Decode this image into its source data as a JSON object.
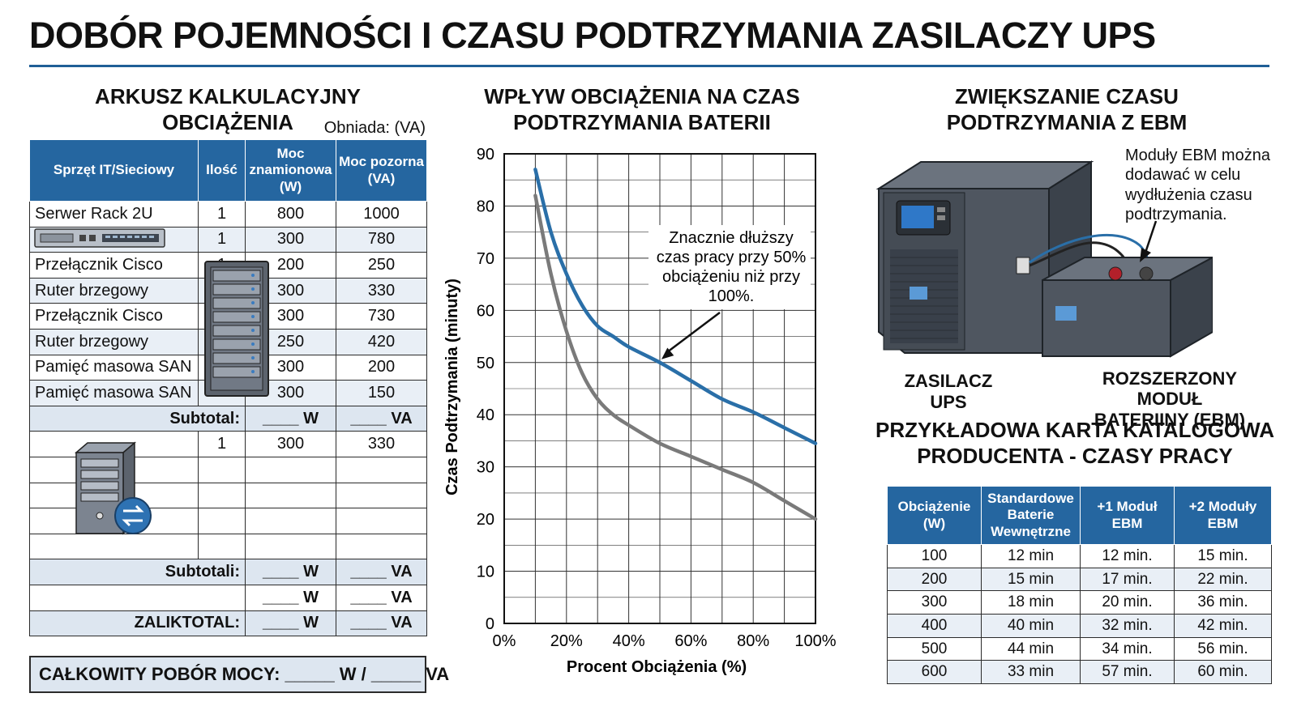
{
  "main_title": "DOBÓR POJEMNOŚCI I CZASU PODTRZYMANIA ZASILACZY UPS",
  "load_sheet": {
    "title": "ARKUSZ KALKULACYJNY OBCIĄŻENIA",
    "unit_note": "Obniada: (VA)",
    "headers": [
      "Sprzęt IT/Sieciowy",
      "Ilość",
      "Moc znamionowa (W)",
      "Moc pozorna (VA)"
    ],
    "rows": [
      {
        "device": "Serwer Rack 2U",
        "qty": "1",
        "w": "800",
        "va": "1000"
      },
      {
        "device": "",
        "qty": "1",
        "w": "300",
        "va": "780"
      },
      {
        "device": "Przełącznik Cisco",
        "qty": "1",
        "w": "200",
        "va": "250"
      },
      {
        "device": "Ruter brzegowy",
        "qty": "",
        "w": "300",
        "va": "330"
      },
      {
        "device": "Przełącznik Cisco",
        "qty": "",
        "w": "300",
        "va": "730"
      },
      {
        "device": "Ruter brzegowy",
        "qty": "",
        "w": "250",
        "va": "420"
      },
      {
        "device": "Pamięć masowa SAN",
        "qty": "",
        "w": "300",
        "va": "200"
      },
      {
        "device": "Pamięć masowa SAN",
        "qty": "",
        "w": "300",
        "va": "150"
      }
    ],
    "subtotal1": {
      "label": "Subtotal:",
      "w": "____ W",
      "va": "____ VA"
    },
    "row2": {
      "qty": "1",
      "w": "300",
      "va": "330"
    },
    "subtotal2": {
      "label": "Subtotali:",
      "w": "____ W",
      "va": "____ VA"
    },
    "subtotal3": {
      "w": "____ W",
      "va": "____ VA"
    },
    "grand": {
      "label": "ZALIKTOTAL:",
      "w": "____ W",
      "va": "____ VA"
    },
    "total_line": "CAŁKOWITY POBÓR MOCY: _____ W / _____ VA"
  },
  "chart_section": {
    "title_line1": "WPŁYW OBCIĄŻENIA NA CZAS",
    "title_line2": "PODTRZYMANIA BATERII"
  },
  "chart_data": {
    "type": "line",
    "xlabel": "Procent Obciążenia (%)",
    "ylabel": "Czas Podtrzymania (minuty)",
    "xlim": [
      0,
      100
    ],
    "ylim": [
      0,
      90
    ],
    "x_ticks": [
      "0%",
      "20%",
      "40%",
      "60%",
      "80%",
      "100%"
    ],
    "y_ticks": [
      "0",
      "10",
      "20",
      "30",
      "40",
      "50",
      "60",
      "70",
      "80",
      "90"
    ],
    "grid": true,
    "series": [
      {
        "color": "#2a6fa8",
        "x": [
          10,
          15,
          20,
          25,
          30,
          35,
          40,
          50,
          60,
          70,
          80,
          90,
          100
        ],
        "y": [
          87,
          75,
          67,
          61,
          57,
          55,
          53,
          50,
          46.5,
          43,
          40.5,
          37.5,
          34.5
        ]
      },
      {
        "color": "#7a7a7a",
        "x": [
          10,
          15,
          20,
          25,
          30,
          35,
          40,
          50,
          60,
          70,
          80,
          90,
          100
        ],
        "y": [
          82,
          67,
          56,
          48,
          43,
          40,
          38,
          34.5,
          32,
          29.5,
          27,
          23.5,
          20
        ]
      }
    ],
    "annotation": {
      "lines": [
        "Znacznie dłuższy",
        "czas pracy przy 50%",
        "obciążeniu niż przy",
        "100%."
      ],
      "target_x": 50,
      "target_y": 50
    }
  },
  "ebm_section": {
    "title_line1": "ZWIĘKSZANIE CZASU",
    "title_line2": "PODTRZYMANIA Z EBM",
    "note": "Moduły EBM można dodawać w celu wydłużenia czasu podtrzymania.",
    "ups_label": "ZASILACZ UPS",
    "ebm_label_line1": "ROZSZERZONY MODUŁ",
    "ebm_label_line2": "BATERIINY (EBM)"
  },
  "catalog": {
    "title_line1": "PRZYKŁADOWA KARTA KATALOGOWA",
    "title_line2": "PRODUCENTA - CZASY PRACY",
    "headers": [
      "Obciążenie (W)",
      "Standardowe Baterie Wewnętrzne",
      "+1 Moduł EBM",
      "+2 Moduły EBM"
    ],
    "rows": [
      [
        "100",
        "12 min",
        "12 min.",
        "15 min."
      ],
      [
        "200",
        "15 min",
        "17 min.",
        "22 min."
      ],
      [
        "300",
        "18 min",
        "20 min.",
        "36 min."
      ],
      [
        "400",
        "40 min",
        "32 min.",
        "42 min."
      ],
      [
        "500",
        "44 min",
        "34 min.",
        "56 min."
      ],
      [
        "600",
        "33 min",
        "57 min.",
        "60 min."
      ]
    ]
  }
}
